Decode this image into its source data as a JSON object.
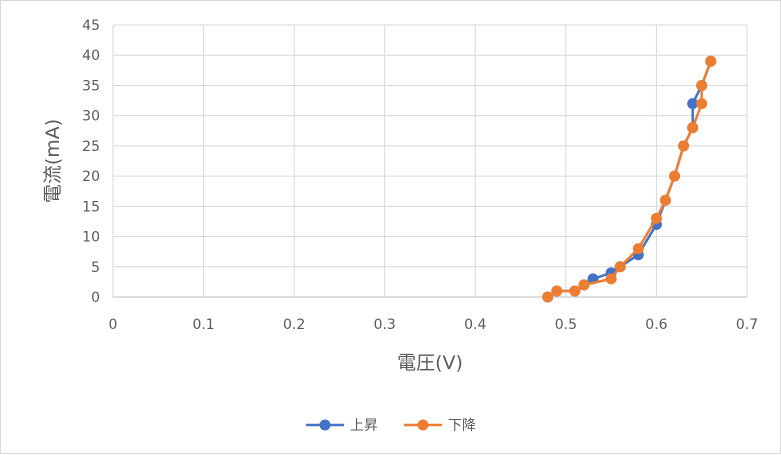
{
  "chart_data": {
    "type": "scatter",
    "title": "",
    "xlabel": "電圧(V)",
    "ylabel": "電流(mA)",
    "xlim": [
      0,
      0.7
    ],
    "ylim": [
      0,
      45
    ],
    "x_ticks": [
      "0",
      "0.1",
      "0.2",
      "0.3",
      "0.4",
      "0.5",
      "0.6",
      "0.7"
    ],
    "y_ticks": [
      "0",
      "5",
      "10",
      "15",
      "20",
      "25",
      "30",
      "35",
      "40",
      "45"
    ],
    "grid": true,
    "legend_position": "bottom",
    "series": [
      {
        "name": "上昇",
        "color": "#4472C4",
        "points": [
          [
            0.48,
            0
          ],
          [
            0.49,
            1
          ],
          [
            0.51,
            1
          ],
          [
            0.52,
            2
          ],
          [
            0.53,
            3
          ],
          [
            0.55,
            4
          ],
          [
            0.56,
            5
          ],
          [
            0.58,
            7
          ],
          [
            0.6,
            12
          ],
          [
            0.61,
            16
          ],
          [
            0.62,
            20
          ],
          [
            0.63,
            25
          ],
          [
            0.64,
            28
          ],
          [
            0.64,
            32
          ],
          [
            0.65,
            35
          ],
          [
            0.66,
            39
          ]
        ]
      },
      {
        "name": "下降",
        "color": "#ED7D31",
        "points": [
          [
            0.48,
            0
          ],
          [
            0.49,
            1
          ],
          [
            0.51,
            1
          ],
          [
            0.52,
            2
          ],
          [
            0.55,
            3
          ],
          [
            0.56,
            5
          ],
          [
            0.58,
            8
          ],
          [
            0.6,
            13
          ],
          [
            0.61,
            16
          ],
          [
            0.62,
            20
          ],
          [
            0.63,
            25
          ],
          [
            0.64,
            28
          ],
          [
            0.65,
            32
          ],
          [
            0.65,
            35
          ],
          [
            0.66,
            39
          ]
        ]
      }
    ]
  }
}
